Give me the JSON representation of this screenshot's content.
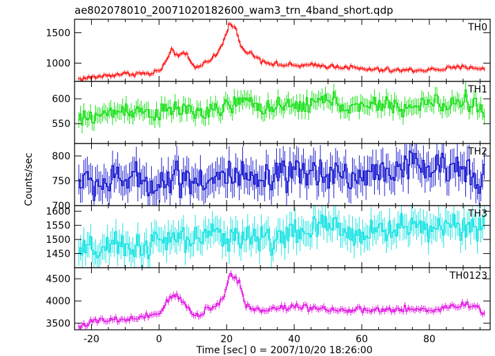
{
  "chart_data": {
    "type": "line",
    "title": "ae802078010_20071020182600_wam3_trn_4band_short.qdp",
    "xlabel": "Time [sec] 0 = 2007/10/20 18:26:00",
    "ylabel": "Counts/sec",
    "xlim": [
      -25,
      98
    ],
    "xticks": [
      -20,
      0,
      20,
      40,
      60,
      80
    ],
    "panels": [
      {
        "name": "TH0",
        "color": "#ff0000",
        "ylim": [
          700,
          1720
        ],
        "yticks": [
          1000,
          1500
        ],
        "error": 35,
        "x": [
          -24,
          -18,
          -12,
          -6,
          -3,
          0,
          2,
          3.5,
          5,
          8,
          10,
          12,
          14,
          17,
          19,
          20.5,
          22,
          23.5,
          25,
          27,
          30,
          34,
          40,
          46,
          55,
          60,
          70,
          80,
          85,
          92,
          96
        ],
        "y": [
          740,
          780,
          820,
          830,
          820,
          880,
          1040,
          1200,
          1150,
          1130,
          940,
          950,
          1040,
          1150,
          1370,
          1640,
          1600,
          1400,
          1180,
          1160,
          1050,
          980,
          960,
          960,
          940,
          900,
          880,
          890,
          910,
          940,
          900
        ]
      },
      {
        "name": "TH1",
        "color": "#00dd00",
        "ylim": [
          510,
          635
        ],
        "yticks": [
          550,
          600
        ],
        "error": 16,
        "x": [
          -24,
          -20,
          -15,
          -10,
          -5,
          0,
          5,
          10,
          15,
          20,
          25,
          30,
          35,
          40,
          45,
          50,
          55,
          60,
          65,
          70,
          75,
          80,
          85,
          90,
          96
        ],
        "y": [
          555,
          565,
          570,
          580,
          575,
          570,
          580,
          575,
          570,
          585,
          595,
          585,
          580,
          585,
          590,
          600,
          585,
          580,
          590,
          585,
          580,
          595,
          585,
          600,
          575
        ]
      },
      {
        "name": "TH2",
        "color": "#0000cc",
        "ylim": [
          700,
          825
        ],
        "yticks": [
          700,
          750,
          800
        ],
        "error": 30,
        "x": [
          -24,
          -20,
          -15,
          -10,
          -5,
          0,
          5,
          10,
          15,
          20,
          25,
          30,
          35,
          40,
          45,
          50,
          55,
          60,
          65,
          70,
          75,
          80,
          85,
          90,
          96
        ],
        "y": [
          750,
          745,
          745,
          755,
          750,
          745,
          760,
          755,
          750,
          760,
          750,
          745,
          755,
          760,
          765,
          770,
          760,
          755,
          770,
          775,
          780,
          775,
          770,
          780,
          760
        ]
      },
      {
        "name": "TH3",
        "color": "#00e0e0",
        "ylim": [
          1400,
          1620
        ],
        "yticks": [
          1450,
          1500,
          1550,
          1600
        ],
        "error": 45,
        "x": [
          -24,
          -20,
          -15,
          -10,
          -5,
          0,
          5,
          10,
          15,
          20,
          25,
          30,
          35,
          40,
          45,
          50,
          55,
          60,
          65,
          70,
          75,
          80,
          85,
          90,
          96
        ],
        "y": [
          1450,
          1460,
          1470,
          1470,
          1480,
          1490,
          1500,
          1500,
          1510,
          1520,
          1510,
          1500,
          1510,
          1520,
          1530,
          1550,
          1530,
          1520,
          1530,
          1540,
          1550,
          1540,
          1550,
          1560,
          1530
        ]
      },
      {
        "name": "TH0123",
        "color": "#e000e0",
        "ylim": [
          3350,
          4750
        ],
        "yticks": [
          3500,
          4000,
          4500
        ],
        "error": 70,
        "x": [
          -24,
          -20,
          -15,
          -10,
          -5,
          0,
          2,
          4,
          6,
          8,
          10,
          12,
          14,
          17,
          19,
          20.5,
          22,
          23.5,
          25,
          27,
          30,
          34,
          40,
          46,
          55,
          60,
          70,
          80,
          85,
          92,
          96
        ],
        "y": [
          3430,
          3530,
          3560,
          3580,
          3600,
          3750,
          3950,
          4150,
          4050,
          3850,
          3700,
          3680,
          3850,
          3900,
          4100,
          4580,
          4550,
          4450,
          3950,
          3850,
          3780,
          3830,
          3880,
          3850,
          3780,
          3780,
          3800,
          3800,
          3850,
          3950,
          3700
        ]
      }
    ]
  }
}
